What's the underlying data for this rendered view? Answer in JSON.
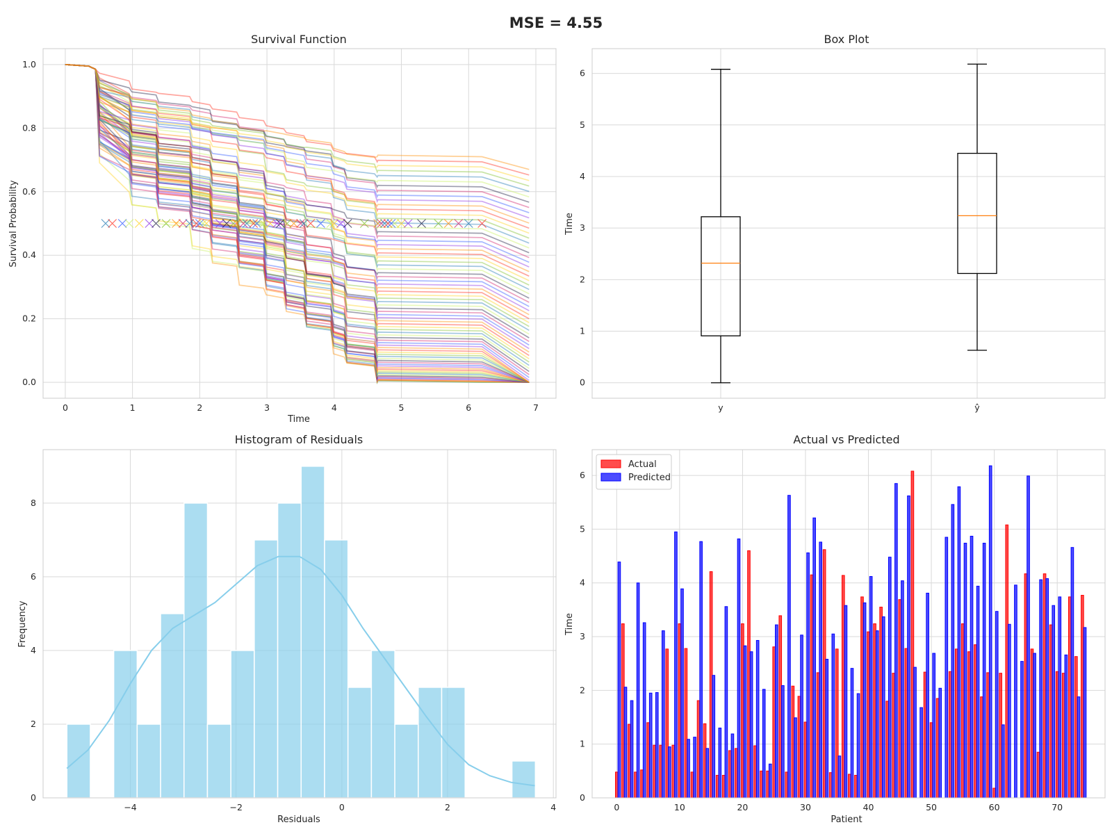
{
  "figure": {
    "suptitle": "MSE = 4.55"
  },
  "chart_data": [
    {
      "panel": "survival",
      "type": "line",
      "title": "Survival Function",
      "xlabel": "Time",
      "ylabel": "Survival Probability",
      "xlim": [
        -0.33,
        7.3
      ],
      "ylim": [
        -0.05,
        1.05
      ],
      "xticks": [
        0,
        1,
        2,
        3,
        4,
        5,
        6,
        7
      ],
      "yticks": [
        0.0,
        0.2,
        0.4,
        0.6,
        0.8,
        1.0
      ],
      "ytick_labels": [
        "0.0",
        "0.2",
        "0.4",
        "0.6",
        "0.8",
        "1.0"
      ],
      "grid": true,
      "n_curves": 75,
      "step_times": [
        0.45,
        0.95,
        1.35,
        1.85,
        2.15,
        2.55,
        2.95,
        3.25,
        3.55,
        3.95,
        4.15,
        4.6
      ],
      "curve_end_time": 6.9,
      "flat_after": 4.65,
      "final_survival_range": [
        0.0,
        0.71
      ],
      "median_marker_level": 0.5,
      "median_times": [
        0.6,
        0.7,
        0.85,
        0.95,
        1.1,
        1.25,
        1.35,
        1.5,
        1.65,
        1.75,
        1.85,
        1.95,
        2.0,
        2.05,
        2.1,
        2.3,
        2.4,
        2.5,
        2.55,
        2.65,
        2.7,
        2.8,
        2.85,
        2.95,
        3.05,
        3.15,
        3.2,
        3.3,
        3.4,
        3.5,
        3.55,
        3.65,
        3.8,
        3.95,
        4.0,
        4.1,
        4.2,
        4.45,
        4.65,
        4.7,
        4.75,
        4.8,
        4.85,
        4.9,
        5.0,
        5.1,
        5.3,
        5.55,
        5.7,
        5.85,
        6.0,
        6.2
      ],
      "palette": [
        "#1f77b4",
        "#7fbf2a",
        "#ffd21a",
        "#ff2a1a",
        "#ff8c00",
        "#8a2be2",
        "#2a55ff",
        "#d11f6a",
        "#1a1a40",
        "#c8f060"
      ]
    },
    {
      "panel": "box",
      "type": "box",
      "title": "Box Plot",
      "ylabel": "Time",
      "categories": [
        "y",
        "ŷ"
      ],
      "ylim": [
        -0.3,
        6.48
      ],
      "yticks": [
        0,
        1,
        2,
        3,
        4,
        5,
        6
      ],
      "grid": true,
      "boxes": [
        {
          "label": "y",
          "whisker_low": 0.0,
          "q1": 0.91,
          "median": 2.32,
          "q3": 3.22,
          "whisker_high": 6.08
        },
        {
          "label": "ŷ",
          "whisker_low": 0.63,
          "q1": 2.12,
          "median": 3.24,
          "q3": 4.45,
          "whisker_high": 6.18
        }
      ],
      "colors": {
        "box": "#000000",
        "median": "#ff7f0e"
      }
    },
    {
      "panel": "histogram",
      "type": "bar",
      "title": "Histogram of Residuals",
      "xlabel": "Residuals",
      "ylabel": "Frequency",
      "xlim": [
        -5.65,
        4.05
      ],
      "ylim": [
        0,
        9.45
      ],
      "xticks": [
        -4,
        -2,
        0,
        2,
        4
      ],
      "xtick_labels": [
        "−4",
        "−2",
        "0",
        "2",
        "4"
      ],
      "yticks": [
        0,
        2,
        4,
        6,
        8
      ],
      "grid": true,
      "bin_start": -5.2,
      "bin_width": 0.443,
      "counts": [
        2,
        0,
        4,
        2,
        5,
        8,
        2,
        4,
        7,
        8,
        9,
        7,
        3,
        4,
        2,
        3,
        3,
        0,
        0,
        1
      ],
      "kde": {
        "x": [
          -5.2,
          -4.8,
          -4.4,
          -4.0,
          -3.6,
          -3.2,
          -2.8,
          -2.4,
          -2.0,
          -1.6,
          -1.2,
          -0.8,
          -0.4,
          0.0,
          0.4,
          0.8,
          1.2,
          1.6,
          2.0,
          2.4,
          2.8,
          3.2,
          3.65
        ],
        "y": [
          0.8,
          1.3,
          2.1,
          3.1,
          4.0,
          4.6,
          4.95,
          5.3,
          5.8,
          6.3,
          6.55,
          6.55,
          6.2,
          5.5,
          4.6,
          3.8,
          3.0,
          2.2,
          1.45,
          0.9,
          0.6,
          0.42,
          0.33
        ]
      },
      "colors": {
        "bar": "#87ceeb",
        "kde": "#87ceeb"
      }
    },
    {
      "panel": "actual_vs_predicted",
      "type": "bar",
      "title": "Actual vs Predicted",
      "xlabel": "Patient",
      "ylabel": "Time",
      "xlim": [
        -3.9,
        77.6
      ],
      "ylim": [
        0,
        6.48
      ],
      "xticks": [
        0,
        10,
        20,
        30,
        40,
        50,
        60,
        70
      ],
      "yticks": [
        0,
        1,
        2,
        3,
        4,
        5,
        6
      ],
      "grid": true,
      "legend_position": "top-left",
      "bar_width": 0.4,
      "series": [
        {
          "name": "Actual",
          "color": "#ff0000",
          "values": [
            0.48,
            3.24,
            1.37,
            0.48,
            0.52,
            1.4,
            0.98,
            0.98,
            2.77,
            0.98,
            3.24,
            2.78,
            0.48,
            1.81,
            1.38,
            4.21,
            0.42,
            0.42,
            0.88,
            0.92,
            3.24,
            4.6,
            0.97,
            0.5,
            0.5,
            2.81,
            3.39,
            0.48,
            2.08,
            1.89,
            1.41,
            4.15,
            2.33,
            4.62,
            0.47,
            2.77,
            4.14,
            0.44,
            0.42,
            3.74,
            3.09,
            3.24,
            3.55,
            1.8,
            2.32,
            3.69,
            2.78,
            6.08,
            0.0,
            2.34,
            1.4,
            1.85,
            0.0,
            2.35,
            2.77,
            3.24,
            2.72,
            2.85,
            1.88,
            2.33,
            0.18,
            2.32,
            5.08,
            0.0,
            0.0,
            4.17,
            2.77,
            0.85,
            4.17,
            3.22,
            2.35,
            2.32,
            3.74,
            2.63,
            3.77
          ]
        },
        {
          "name": "Predicted",
          "color": "#0000ff",
          "values": [
            4.39,
            2.06,
            1.81,
            4.0,
            3.26,
            1.95,
            1.96,
            3.11,
            0.95,
            4.95,
            3.89,
            1.09,
            1.13,
            4.77,
            0.92,
            2.28,
            1.3,
            3.56,
            1.19,
            4.82,
            2.83,
            2.72,
            2.93,
            2.02,
            0.63,
            3.22,
            2.09,
            5.63,
            1.49,
            3.03,
            4.56,
            5.21,
            4.76,
            2.58,
            3.05,
            0.78,
            3.58,
            2.41,
            1.94,
            3.63,
            4.12,
            3.11,
            3.37,
            4.48,
            5.85,
            4.04,
            5.62,
            2.43,
            1.68,
            3.81,
            2.69,
            2.04,
            4.85,
            5.46,
            5.79,
            4.74,
            4.87,
            3.94,
            4.74,
            6.18,
            3.47,
            1.36,
            3.23,
            3.96,
            2.54,
            5.99,
            2.69,
            4.06,
            4.08,
            3.58,
            3.74,
            2.66,
            4.66,
            1.88,
            3.17
          ]
        }
      ]
    }
  ]
}
